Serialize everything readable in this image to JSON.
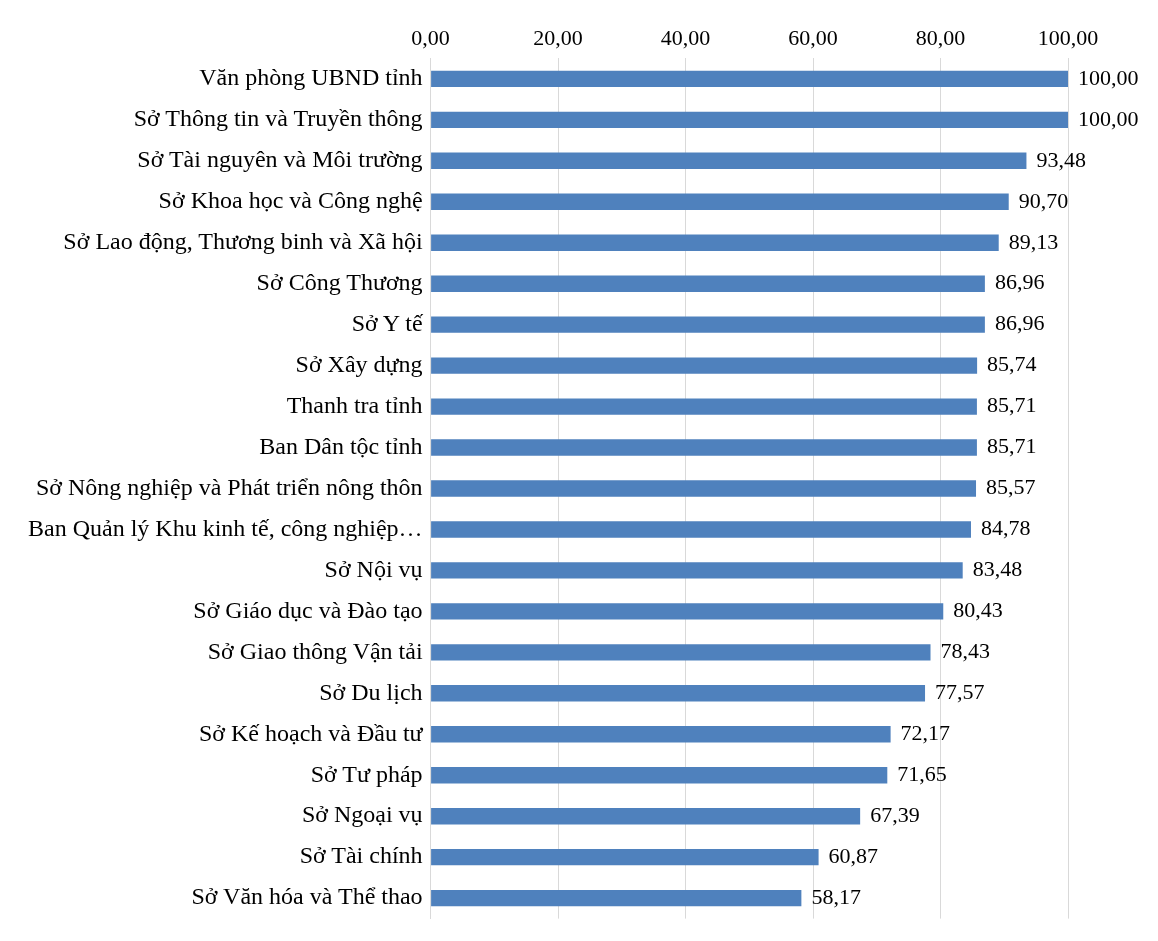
{
  "chart_data": {
    "type": "bar",
    "orientation": "horizontal",
    "categories": [
      "Văn phòng UBND tỉnh",
      "Sở Thông tin và Truyền thông",
      "Sở Tài nguyên và Môi trường",
      "Sở Khoa học và Công nghệ",
      "Sở Lao động, Thương binh và Xã hội",
      "Sở Công Thương",
      "Sở Y tế",
      "Sở Xây dựng",
      "Thanh tra tỉnh",
      "Ban Dân tộc tỉnh",
      "Sở Nông nghiệp và Phát triển nông thôn",
      "Ban Quản lý Khu kinh tế, công nghiệp…",
      "Sở Nội vụ",
      "Sở Giáo dục và Đào tạo",
      "Sở Giao thông Vận tải",
      "Sở Du lịch",
      "Sở Kế hoạch và Đầu tư",
      "Sở Tư pháp",
      "Sở Ngoại vụ",
      "Sở Tài chính",
      "Sở Văn hóa và Thể thao"
    ],
    "values": [
      100,
      100,
      93.48,
      90.7,
      89.13,
      86.96,
      86.96,
      85.74,
      85.71,
      85.71,
      85.57,
      84.78,
      83.48,
      80.43,
      78.43,
      77.57,
      72.17,
      71.65,
      67.39,
      60.87,
      58.17
    ],
    "value_labels": [
      "100,00",
      "100,00",
      "93,48",
      "90,70",
      "89,13",
      "86,96",
      "86,96",
      "85,74",
      "85,71",
      "85,71",
      "85,57",
      "84,78",
      "83,48",
      "80,43",
      "78,43",
      "77,57",
      "72,17",
      "71,65",
      "67,39",
      "60,87",
      "58,17"
    ],
    "color": "#4f81bd",
    "xlim": [
      0,
      100
    ],
    "xticks": [
      {
        "value": 0,
        "label": "0,00"
      },
      {
        "value": 20,
        "label": "20,00"
      },
      {
        "value": 40,
        "label": "40,00"
      },
      {
        "value": 60,
        "label": "60,00"
      },
      {
        "value": 80,
        "label": "80,00"
      },
      {
        "value": 100,
        "label": "100,00"
      }
    ],
    "grid": "x"
  }
}
